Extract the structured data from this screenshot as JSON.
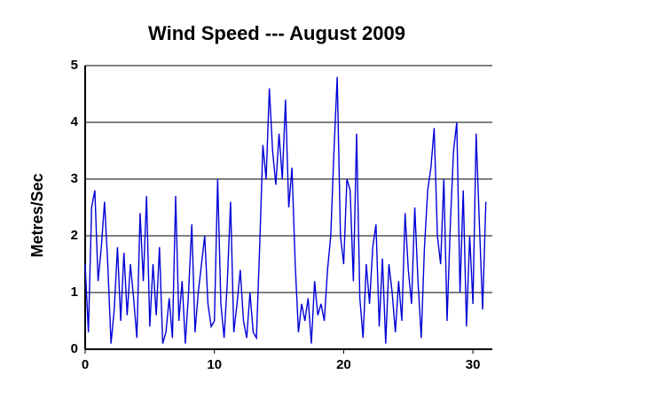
{
  "chart_data": {
    "type": "line",
    "title": "Wind Speed --- August 2009",
    "y_label": "Metres/Sec",
    "x": [
      0,
      0.25,
      0.5,
      0.75,
      1,
      1.25,
      1.5,
      1.75,
      2,
      2.25,
      2.5,
      2.75,
      3,
      3.25,
      3.5,
      3.75,
      4,
      4.25,
      4.5,
      4.75,
      5,
      5.25,
      5.5,
      5.75,
      6,
      6.25,
      6.5,
      6.75,
      7,
      7.25,
      7.5,
      7.75,
      8,
      8.25,
      8.5,
      8.75,
      9,
      9.25,
      9.5,
      9.75,
      10,
      10.25,
      10.5,
      10.75,
      11,
      11.25,
      11.5,
      11.75,
      12,
      12.25,
      12.5,
      12.75,
      13,
      13.25,
      13.5,
      13.75,
      14,
      14.25,
      14.5,
      14.75,
      15,
      15.25,
      15.5,
      15.75,
      16,
      16.25,
      16.5,
      16.75,
      17,
      17.25,
      17.5,
      17.75,
      18,
      18.25,
      18.5,
      18.75,
      19,
      19.25,
      19.5,
      19.75,
      20,
      20.25,
      20.5,
      20.75,
      21,
      21.25,
      21.5,
      21.75,
      22,
      22.25,
      22.5,
      22.75,
      23,
      23.25,
      23.5,
      23.75,
      24,
      24.25,
      24.5,
      24.75,
      25,
      25.25,
      25.5,
      25.75,
      26,
      26.25,
      26.5,
      26.75,
      27,
      27.25,
      27.5,
      27.75,
      28,
      28.25,
      28.5,
      28.75,
      29,
      29.25,
      29.5,
      29.75,
      30,
      30.25,
      30.5,
      30.75,
      31
    ],
    "series": [
      {
        "color": "#0000d8",
        "values": [
          1.5,
          0.3,
          2.5,
          2.8,
          1.2,
          1.8,
          2.6,
          1.5,
          0.1,
          0.7,
          1.8,
          0.5,
          1.7,
          0.6,
          1.5,
          0.9,
          0.2,
          2.4,
          1.2,
          2.7,
          0.4,
          1.5,
          0.6,
          1.8,
          0.1,
          0.3,
          0.9,
          0.2,
          2.7,
          0.5,
          1.2,
          0.1,
          1.0,
          2.2,
          0.3,
          1.0,
          1.5,
          2.0,
          0.8,
          0.4,
          0.5,
          3.0,
          0.8,
          0.2,
          1.2,
          2.6,
          0.3,
          0.8,
          1.4,
          0.5,
          0.2,
          1.0,
          0.3,
          0.2,
          1.8,
          3.6,
          3.0,
          4.6,
          3.5,
          2.9,
          3.8,
          3.0,
          4.4,
          2.5,
          3.2,
          1.5,
          0.3,
          0.8,
          0.5,
          0.9,
          0.1,
          1.2,
          0.6,
          0.8,
          0.5,
          1.4,
          2.0,
          3.5,
          4.8,
          2.0,
          1.5,
          3.0,
          2.8,
          1.2,
          3.8,
          0.9,
          0.2,
          1.5,
          0.8,
          1.8,
          2.2,
          0.4,
          1.6,
          0.1,
          1.5,
          1.0,
          0.3,
          1.2,
          0.5,
          2.4,
          1.4,
          0.8,
          2.5,
          1.2,
          0.2,
          1.8,
          2.8,
          3.2,
          3.9,
          2.0,
          1.5,
          3.0,
          0.5,
          2.2,
          3.5,
          4.0,
          1.0,
          2.8,
          0.4,
          2.0,
          0.8,
          3.8,
          2.2,
          0.7,
          2.6
        ]
      }
    ],
    "xlim": [
      0,
      31.5
    ],
    "ylim": [
      0,
      5
    ],
    "xticks": [
      0,
      10,
      20,
      30
    ],
    "yticks": [
      0,
      1,
      2,
      3,
      4,
      5
    ],
    "grid": true
  }
}
